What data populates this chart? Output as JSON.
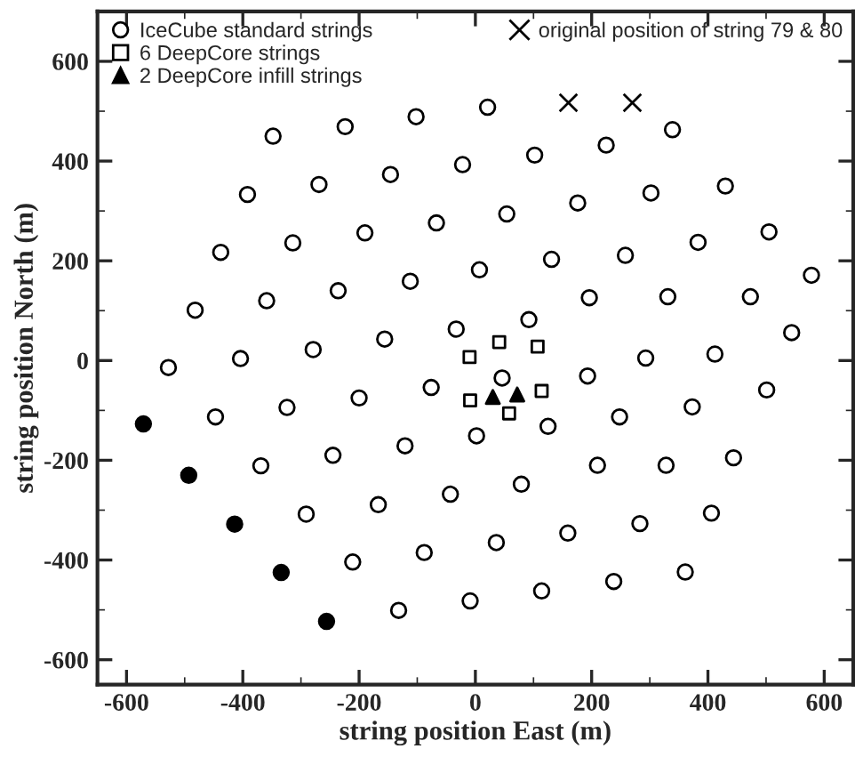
{
  "chart_data": {
    "type": "scatter",
    "xlabel": "string position East (m)",
    "ylabel": "string position North (m)",
    "xlim": [
      -650,
      650
    ],
    "ylim": [
      -650,
      700
    ],
    "xticks": [
      -600,
      -400,
      -200,
      0,
      200,
      400,
      600
    ],
    "yticks": [
      -600,
      -400,
      -200,
      0,
      200,
      400,
      600
    ],
    "grid": false,
    "legend": "top",
    "series": [
      {
        "name": "IceCube standard strings",
        "color": "#ffffff",
        "marker": "circle",
        "x": [
          -348,
          -224,
          -102,
          -22,
          -392,
          -269,
          -146,
          -67,
          -438,
          -314,
          -190,
          7,
          -482,
          -359,
          -236,
          -112,
          -33,
          -528,
          -404,
          -279,
          -156,
          -76,
          21,
          102,
          225,
          339,
          54,
          176,
          302,
          430,
          131,
          258,
          383,
          505,
          578,
          196,
          331,
          473,
          92,
          544,
          293,
          412,
          46,
          193,
          501,
          2,
          125,
          248,
          373,
          210,
          328,
          444,
          -43,
          79,
          36,
          159,
          283,
          406,
          -9,
          114,
          238,
          361,
          -200,
          -324,
          -447,
          -121,
          -245,
          -369,
          -167,
          -291,
          -88,
          -211,
          -132
        ],
        "values": [
          450,
          469,
          489,
          393,
          333,
          353,
          373,
          276,
          217,
          236,
          256,
          182,
          101,
          120,
          140,
          159,
          63,
          -14,
          4,
          22,
          43,
          -54,
          508,
          412,
          432,
          463,
          294,
          316,
          336,
          350,
          203,
          211,
          237,
          258,
          171,
          126,
          128,
          128,
          82,
          56,
          5,
          13,
          -35,
          -31,
          -59,
          -151,
          -132,
          -113,
          -93,
          -210,
          -210,
          -195,
          -268,
          -248,
          -365,
          -346,
          -327,
          -306,
          -482,
          -462,
          -443,
          -424,
          -75,
          -94,
          -113,
          -171,
          -190,
          -211,
          -289,
          -308,
          -385,
          -404,
          -501
        ]
      },
      {
        "name": "6 DeepCore strings",
        "color": "#ffffff",
        "marker": "square",
        "x": [
          -10,
          41,
          107,
          -9,
          58,
          114
        ],
        "values": [
          7,
          37,
          28,
          -80,
          -106,
          -61
        ]
      },
      {
        "name": "2 DeepCore infill strings",
        "color": "#000000",
        "marker": "triangle",
        "x": [
          30,
          72
        ],
        "values": [
          -73,
          -68
        ]
      },
      {
        "color": "#000000",
        "marker": "circle",
        "x": [
          -571,
          -493,
          -414,
          -334,
          -256
        ],
        "values": [
          -127,
          -230,
          -328,
          -425,
          -523
        ]
      },
      {
        "name": "original position of string 79 & 80",
        "color": "#000000",
        "marker": "cross",
        "x": [
          160,
          270
        ],
        "values": [
          517,
          517
        ]
      }
    ]
  }
}
